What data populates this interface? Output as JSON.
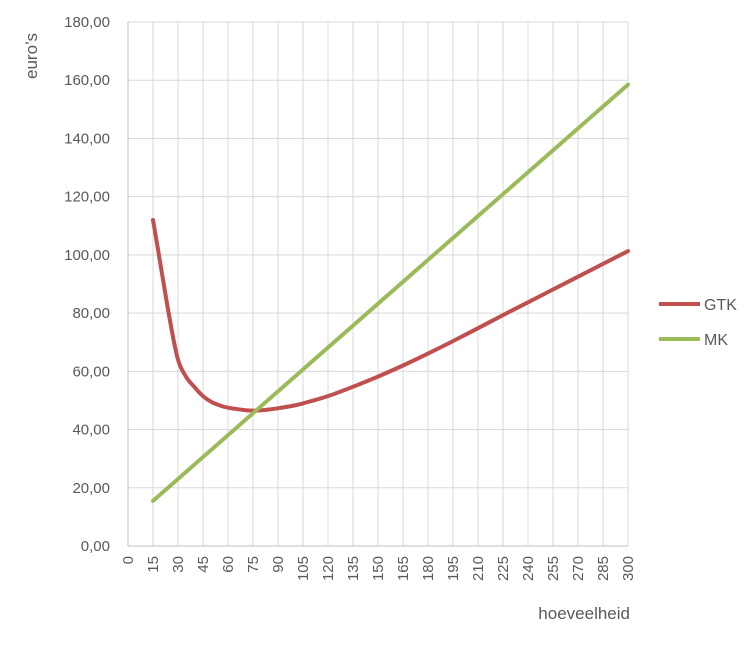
{
  "chart_data": {
    "type": "line",
    "title": "",
    "xlabel": "hoeveelheid",
    "ylabel": "euro’s",
    "xlim": [
      0,
      300
    ],
    "ylim": [
      0,
      180
    ],
    "x_ticks": [
      0,
      15,
      30,
      45,
      60,
      75,
      90,
      105,
      120,
      135,
      150,
      165,
      180,
      195,
      210,
      225,
      240,
      255,
      270,
      285,
      300
    ],
    "y_ticks": [
      0,
      20,
      40,
      60,
      80,
      100,
      120,
      140,
      160,
      180
    ],
    "y_tick_labels": [
      "0,00",
      "20,00",
      "40,00",
      "60,00",
      "80,00",
      "100,00",
      "120,00",
      "140,00",
      "160,00",
      "180,00"
    ],
    "grid": true,
    "legend_position": "right",
    "series": [
      {
        "name": "GTK",
        "color": "#C0504D",
        "x": [
          15,
          20,
          25,
          30,
          35,
          40,
          45,
          50,
          55,
          60,
          70,
          75,
          80,
          90,
          100,
          105,
          120,
          135,
          150,
          165,
          180,
          195,
          210,
          225,
          240,
          255,
          270,
          285,
          300
        ],
        "values": [
          112,
          95,
          78,
          64,
          58,
          54.5,
          51.5,
          49.5,
          48.3,
          47.5,
          46.7,
          46.5,
          46.6,
          47.3,
          48.3,
          49,
          51.5,
          54.7,
          58.2,
          62,
          66.1,
          70.4,
          74.8,
          79.3,
          83.7,
          88.1,
          92.5,
          96.9,
          101.3
        ]
      },
      {
        "name": "MK",
        "color": "#9BBB59",
        "x": [
          15,
          300
        ],
        "values": [
          15.5,
          158.5
        ]
      }
    ]
  }
}
